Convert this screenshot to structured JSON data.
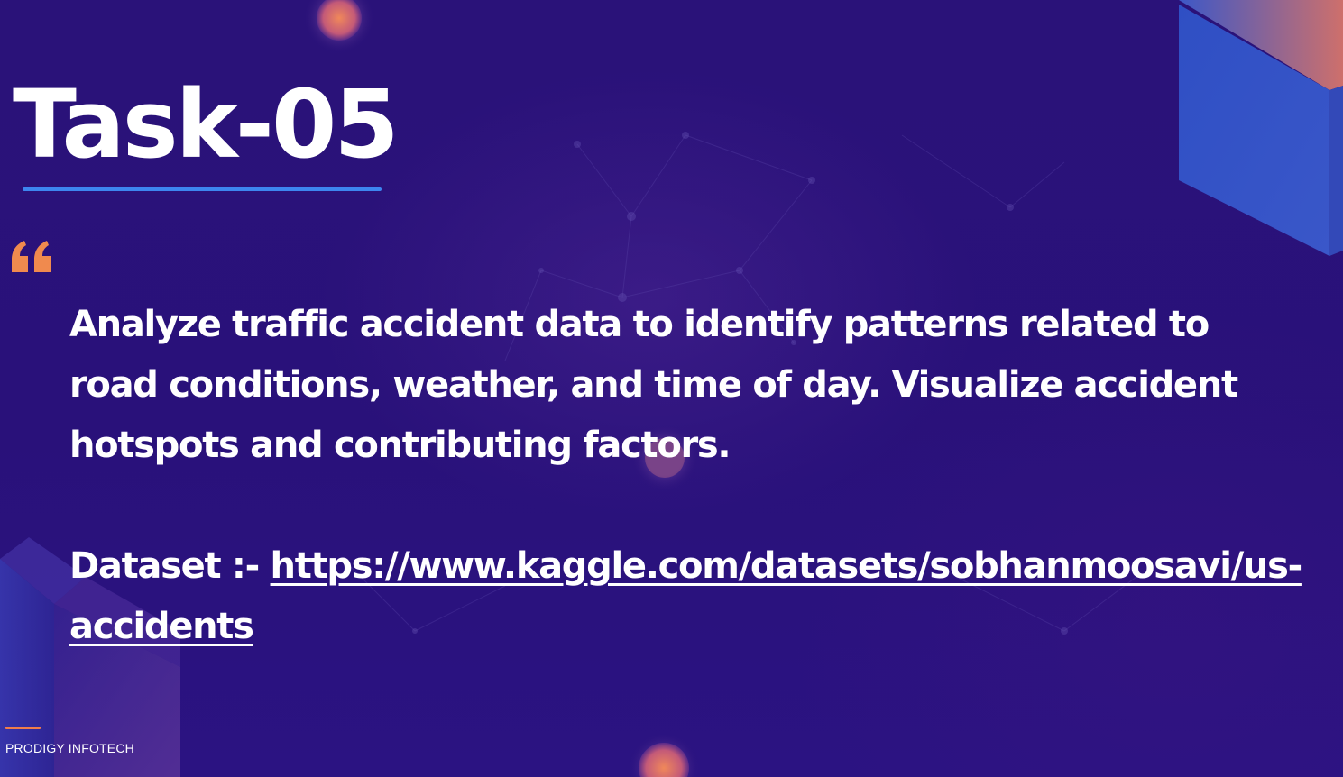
{
  "slide": {
    "title": "Task-05",
    "description": "Analyze traffic accident data to identify patterns related to road conditions, weather, and time of day. Visualize accident hotspots and contributing factors.",
    "dataset_label": "Dataset :-",
    "dataset_url": "https://www.kaggle.com/datasets/sobhanmoosavi/us-accidents"
  },
  "footer": {
    "brand": "PRODIGY INFOTECH"
  },
  "colors": {
    "background": "#28117a",
    "accent_blue": "#3d86f0",
    "accent_orange": "#f07d4a",
    "text": "#ffffff"
  },
  "icons": {
    "quote": "quote-open-icon"
  }
}
